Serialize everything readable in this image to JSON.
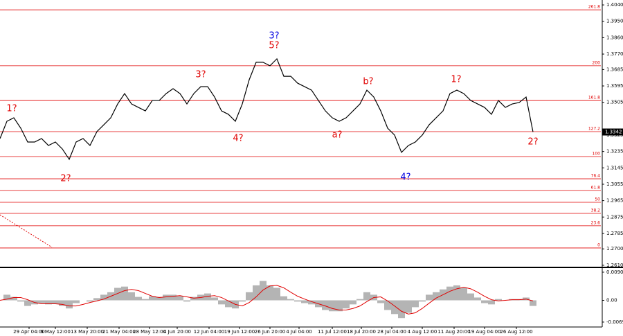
{
  "chart_data": {
    "type": "line",
    "x": [
      0,
      1,
      2,
      3,
      4,
      5,
      6,
      7,
      8,
      9,
      10,
      11,
      12,
      13,
      14,
      15,
      16,
      17,
      18,
      19,
      20,
      21,
      22,
      23,
      24,
      25,
      26,
      27,
      28,
      29,
      30,
      31,
      32,
      33,
      34,
      35,
      36,
      37,
      38,
      39,
      40,
      41,
      42,
      43,
      44,
      45,
      46,
      47,
      48,
      49,
      50,
      51,
      52,
      53,
      54,
      55,
      56,
      57,
      58,
      59,
      60,
      61,
      62,
      63,
      64,
      65,
      66,
      67,
      68,
      69,
      70,
      71,
      72,
      73,
      74,
      75,
      76,
      77
    ],
    "xlim": [
      0,
      86.8
    ],
    "xticks": [
      {
        "value": 4.2,
        "label": "29 Apr 04:00"
      },
      {
        "value": 8.0,
        "label": "6 May 12:00"
      },
      {
        "value": 12.6,
        "label": "13 May 20:00"
      },
      {
        "value": 17.2,
        "label": "21 May 04:00"
      },
      {
        "value": 21.6,
        "label": "28 May 12:00"
      },
      {
        "value": 25.6,
        "label": "4 Jun 20:00"
      },
      {
        "value": 30.2,
        "label": "12 Jun 04:00"
      },
      {
        "value": 34.6,
        "label": "19 Jun 12:00"
      },
      {
        "value": 39.0,
        "label": "26 Jun 20:00"
      },
      {
        "value": 43.2,
        "label": "4 Jul 04:00"
      },
      {
        "value": 48.0,
        "label": "11 Jul 12:00"
      },
      {
        "value": 52.2,
        "label": "18 Jul 20:00"
      },
      {
        "value": 56.6,
        "label": "28 Jul 04:00"
      },
      {
        "value": 61.0,
        "label": "4 Aug 12:00"
      },
      {
        "value": 65.6,
        "label": "11 Aug 20:00"
      },
      {
        "value": 70.0,
        "label": "19 Aug 04:00"
      },
      {
        "value": 74.6,
        "label": "26 Aug 12:00"
      }
    ],
    "ylim": [
      1.2602,
      1.4067
    ],
    "yticks": [
      {
        "value": 1.404,
        "label": "1.4040"
      },
      {
        "value": 1.395,
        "label": "1.3950"
      },
      {
        "value": 1.386,
        "label": "1.3860"
      },
      {
        "value": 1.377,
        "label": "1.3770"
      },
      {
        "value": 1.3685,
        "label": "1.3685"
      },
      {
        "value": 1.3595,
        "label": "1.3595"
      },
      {
        "value": 1.3505,
        "label": "1.3505"
      },
      {
        "value": 1.3325,
        "label": "1.3325"
      },
      {
        "value": 1.3235,
        "label": "1.3235"
      },
      {
        "value": 1.3145,
        "label": "1.3145"
      },
      {
        "value": 1.3055,
        "label": "1.3055"
      },
      {
        "value": 1.2965,
        "label": "1.2965"
      },
      {
        "value": 1.2875,
        "label": "1.2875"
      },
      {
        "value": 1.2785,
        "label": "1.2785"
      },
      {
        "value": 1.27,
        "label": "1.2700"
      },
      {
        "value": 1.261,
        "label": "1.2610"
      }
    ],
    "series": [
      {
        "color": "#000000",
        "values": [
          1.3306,
          1.3401,
          1.342,
          1.3363,
          1.3287,
          1.3287,
          1.3306,
          1.3268,
          1.3287,
          1.3249,
          1.3192,
          1.3287,
          1.3306,
          1.3268,
          1.3344,
          1.3382,
          1.342,
          1.3496,
          1.3553,
          1.3496,
          1.3477,
          1.3458,
          1.3515,
          1.3515,
          1.3553,
          1.358,
          1.3553,
          1.3496,
          1.3553,
          1.3591,
          1.3591,
          1.3534,
          1.3458,
          1.3439,
          1.3401,
          1.3496,
          1.3629,
          1.3725,
          1.3725,
          1.3706,
          1.3744,
          1.3648,
          1.3648,
          1.361,
          1.3591,
          1.3572,
          1.3515,
          1.3458,
          1.342,
          1.3401,
          1.342,
          1.3458,
          1.3496,
          1.3572,
          1.3534,
          1.3458,
          1.3363,
          1.3325,
          1.323,
          1.3268,
          1.3287,
          1.3325,
          1.3382,
          1.342,
          1.3458,
          1.3553,
          1.3572,
          1.3553,
          1.3515,
          1.3496,
          1.3477,
          1.3439,
          1.3515,
          1.3477,
          1.3496,
          1.3504,
          1.3534,
          1.3342
        ]
      }
    ],
    "current_price": {
      "value": 1.3342,
      "label": "1.3342"
    },
    "levels": [
      {
        "ratio": 261.8,
        "price": 1.4013
      },
      {
        "ratio": 200.0,
        "label": "200.0",
        "price": 1.3706
      },
      {
        "ratio": 161.8,
        "price": 1.3515
      },
      {
        "ratio": 127.2,
        "price": 1.3344
      },
      {
        "ratio": 100.0,
        "label": "100.0",
        "price": 1.3207
      },
      {
        "ratio": 76.4,
        "price": 1.3085
      },
      {
        "ratio": 61.8,
        "price": 1.3021
      },
      {
        "ratio": 50.0,
        "label": "50.0",
        "price": 1.2956
      },
      {
        "ratio": 38.2,
        "price": 1.2895
      },
      {
        "ratio": 23.6,
        "price": 1.2827
      },
      {
        "ratio": 0.0,
        "label": "0.0",
        "price": 1.2705
      }
    ],
    "annotations": [
      {
        "text": "1?",
        "x": 1.7,
        "y": 1.347,
        "color": "#e00000"
      },
      {
        "text": "2?",
        "x": 9.5,
        "y": 1.3085,
        "color": "#e00000"
      },
      {
        "text": "3?",
        "x": 29.0,
        "y": 1.3656,
        "color": "#e00000"
      },
      {
        "text": "4?",
        "x": 34.4,
        "y": 1.3306,
        "color": "#e00000"
      },
      {
        "text": "3?",
        "x": 39.6,
        "y": 1.3869,
        "color": "#0000e0"
      },
      {
        "text": "5?",
        "x": 39.6,
        "y": 1.3816,
        "color": "#e00000"
      },
      {
        "text": "a?",
        "x": 48.7,
        "y": 1.3325,
        "color": "#e00000"
      },
      {
        "text": "b?",
        "x": 53.2,
        "y": 1.3618,
        "color": "#e00000"
      },
      {
        "text": "4?",
        "x": 58.6,
        "y": 1.3093,
        "color": "#0000e0"
      },
      {
        "text": "1?",
        "x": 65.9,
        "y": 1.3629,
        "color": "#e00000"
      },
      {
        "text": "2?",
        "x": 77.0,
        "y": 1.3287,
        "color": "#e00000"
      }
    ],
    "trendline": {
      "x": [
        0,
        7.5
      ],
      "y": [
        1.2887,
        1.2709
      ],
      "color": "#e00000"
    },
    "oscillator": {
      "ylim": [
        -0.0081,
        0.0101
      ],
      "yticks": [
        0.00901,
        {
          "value": 0,
          "label": "0.00"
        },
        -0.00697
      ],
      "histogram": {
        "color": "#b4b4b4",
        "values": [
          0,
          0.0018,
          0.0011,
          -0.0004,
          -0.0018,
          -0.0013,
          -0.0009,
          -0.0013,
          -0.0011,
          -0.0018,
          -0.0026,
          -0.0009,
          0,
          -0.0004,
          0.0007,
          0.0018,
          0.0026,
          0.004,
          0.0044,
          0.0026,
          0.0011,
          0.0004,
          0.0013,
          0.0011,
          0.0018,
          0.0018,
          0.0013,
          -0.0004,
          0.0011,
          0.0018,
          0.0022,
          0.0009,
          -0.0013,
          -0.0022,
          -0.0026,
          -0.0004,
          0.0026,
          0.0048,
          0.0062,
          0.0048,
          0.004,
          0.0013,
          0.0004,
          -0.0004,
          -0.0009,
          -0.0013,
          -0.0022,
          -0.0031,
          -0.0035,
          -0.0035,
          -0.0026,
          -0.0013,
          0.0004,
          0.0026,
          0.0018,
          -0.0009,
          -0.0031,
          -0.0044,
          -0.0057,
          -0.004,
          -0.0022,
          -0.0004,
          0.0018,
          0.0026,
          0.0035,
          0.0044,
          0.0048,
          0.004,
          0.0022,
          0.0009,
          -0.0009,
          -0.0013,
          0.0004,
          0,
          0.0004,
          0.0004,
          0.0009,
          -0.0018
        ]
      },
      "signal": {
        "color": "#e00000",
        "values": [
          0,
          0.0004,
          0.0009,
          0.0009,
          0.0002,
          -0.0007,
          -0.0011,
          -0.0011,
          -0.0011,
          -0.0013,
          -0.0018,
          -0.0018,
          -0.0013,
          -0.0007,
          -0.0002,
          0.0004,
          0.0013,
          0.0022,
          0.0031,
          0.0035,
          0.0031,
          0.0022,
          0.0013,
          0.0009,
          0.0011,
          0.0013,
          0.0015,
          0.0011,
          0.0007,
          0.0009,
          0.0013,
          0.0015,
          0.0009,
          -0.0002,
          -0.0013,
          -0.0018,
          -0.0007,
          0.0011,
          0.0033,
          0.0046,
          0.0048,
          0.004,
          0.0026,
          0.0013,
          0.0004,
          -0.0004,
          -0.0011,
          -0.0018,
          -0.0026,
          -0.0031,
          -0.0031,
          -0.0026,
          -0.0018,
          -0.0004,
          0.0009,
          0.0011,
          -0.0002,
          -0.0018,
          -0.0035,
          -0.0044,
          -0.004,
          -0.0026,
          -0.0009,
          0.0007,
          0.0018,
          0.0029,
          0.0037,
          0.0042,
          0.0037,
          0.0026,
          0.0013,
          0.0002,
          -0.0002,
          0,
          0.0002,
          0.0002,
          0.0004,
          -0.0002
        ]
      }
    }
  }
}
